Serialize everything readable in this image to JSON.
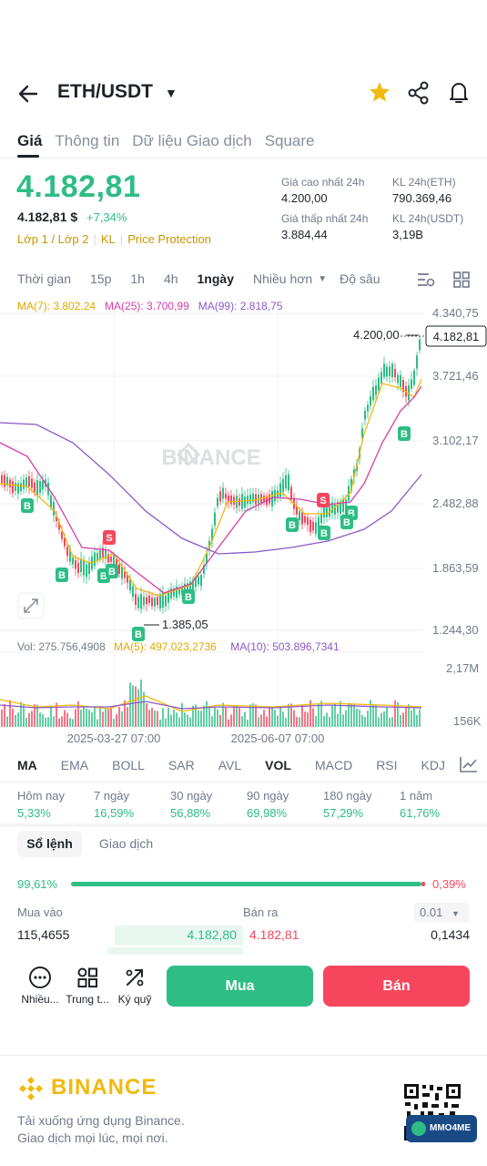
{
  "header": {
    "pair": "ETH/USDT"
  },
  "tabs": [
    "Giá",
    "Thông tin",
    "Dữ liệu Giao dịch",
    "Square"
  ],
  "price": {
    "last": "4.182,81",
    "usd": "4.182,81 $",
    "change": "+7,34%",
    "tags": [
      "Lớp 1 / Lớp 2",
      "KL",
      "Price Protection"
    ],
    "high_label": "Giá cao nhất 24h",
    "high": "4.200,00",
    "low_label": "Giá thấp nhất 24h",
    "low": "3.884,44",
    "vol_eth_label": "KL 24h(ETH)",
    "vol_eth": "790.369,46",
    "vol_usdt_label": "KL 24h(USDT)",
    "vol_usdt": "3,19B"
  },
  "timebar": [
    "Thời gian",
    "15p",
    "1h",
    "4h",
    "1ngày",
    "Nhiều hơn",
    "Độ sâu"
  ],
  "ma": {
    "ma7": "MA(7): 3.802,24",
    "ma25": "MA(25): 3.700,99",
    "ma99": "MA(99): 2.818,75"
  },
  "vol_line": {
    "vol": "Vol: 275.756,4908",
    "ma5": "MA(5): 497.023,2736",
    "ma10": "MA(10): 503.896,7341"
  },
  "chart_data": {
    "type": "candlestick",
    "y_ticks": [
      "4.340,75",
      "3.721,46",
      "3.102,17",
      "2.482,88",
      "1.863,59",
      "1.244,30"
    ],
    "last_price_label": "4.182,81",
    "high_marker": "4.200,00",
    "low_marker": "1.385,05",
    "vol_ticks": [
      "2,17M",
      "156K"
    ],
    "x_ticks": [
      "2025-03-27 07:00",
      "2025-06-07 07:00"
    ],
    "watermark": "BINANCE",
    "colors": {
      "up": "#2ebd85",
      "down": "#f6465d",
      "ma7": "#f0b90b",
      "ma25": "#d63eac",
      "ma99": "#8b58c8"
    }
  },
  "indicators": [
    "MA",
    "EMA",
    "BOLL",
    "SAR",
    "AVL",
    "VOL",
    "MACD",
    "RSI",
    "KDJ"
  ],
  "performance": [
    {
      "label": "Hôm nay",
      "value": "5,33%"
    },
    {
      "label": "7 ngày",
      "value": "16,59%"
    },
    {
      "label": "30 ngày",
      "value": "56,88%"
    },
    {
      "label": "90 ngày",
      "value": "69,98%"
    },
    {
      "label": "180 ngày",
      "value": "57,29%"
    },
    {
      "label": "1 năm",
      "value": "61,76%"
    }
  ],
  "orderbook": {
    "tabs": [
      "Sổ lệnh",
      "Giao dịch"
    ],
    "buy_pct": "99,61%",
    "sell_pct": "0,39%",
    "buy_header": "Mua vào",
    "sell_header": "Bán ra",
    "step": "0.01",
    "rows": [
      {
        "bid_qty": "115,4655",
        "bid": "4.182,80",
        "ask": "4.182,81",
        "ask_qty": "0,1434"
      }
    ]
  },
  "actions": {
    "more": "Nhiều...",
    "center": "Trung t...",
    "margin": "Ký quỹ",
    "buy": "Mua",
    "sell": "Bán"
  },
  "footer": {
    "brand": "BINANCE",
    "line1": "Tải xuống ứng dụng Binance.",
    "line2": "Giao dịch mọi lúc, mọi nơi.",
    "badge": "MMO4ME"
  }
}
